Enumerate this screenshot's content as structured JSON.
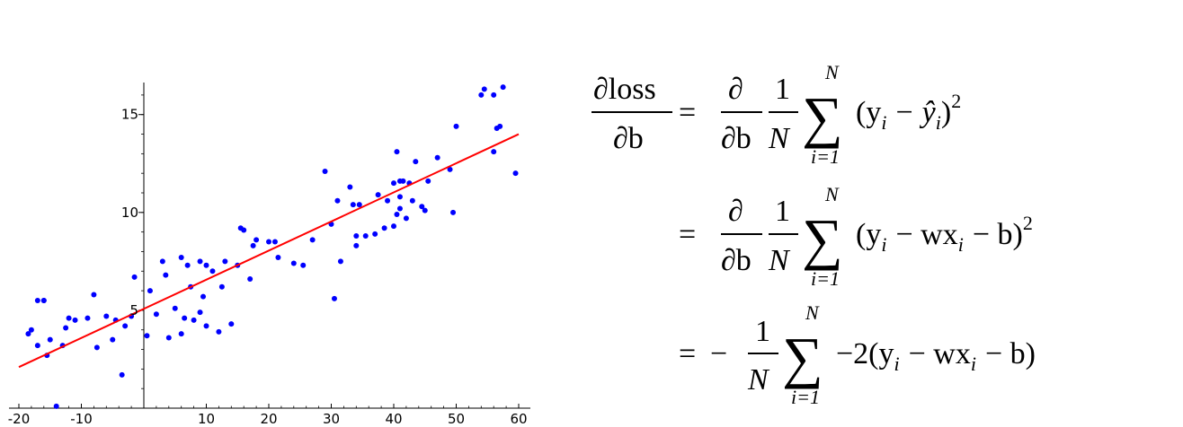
{
  "chart_data": {
    "type": "scatter",
    "title": "",
    "xlabel": "",
    "ylabel": "",
    "xlim": [
      -20,
      60
    ],
    "ylim": [
      0,
      16.5
    ],
    "x_ticks": [
      "-20",
      "-10",
      "10",
      "20",
      "30",
      "40",
      "50",
      "60"
    ],
    "y_ticks": [
      "5",
      "10",
      "15"
    ],
    "grid": false,
    "series": [
      {
        "kind": "scatter",
        "color": "#0000ff",
        "points": [
          [
            -18.5,
            3.8
          ],
          [
            -18,
            4.0
          ],
          [
            -17,
            5.5
          ],
          [
            -16,
            5.5
          ],
          [
            -17,
            3.2
          ],
          [
            -15.5,
            2.7
          ],
          [
            -15,
            3.5
          ],
          [
            -14,
            0.1
          ],
          [
            -13,
            3.2
          ],
          [
            -12.5,
            4.1
          ],
          [
            -12,
            4.6
          ],
          [
            -11,
            4.5
          ],
          [
            -9,
            4.6
          ],
          [
            -8,
            5.8
          ],
          [
            -7.5,
            3.1
          ],
          [
            -6,
            4.7
          ],
          [
            -5,
            3.5
          ],
          [
            -4.5,
            4.5
          ],
          [
            -3.5,
            1.7
          ],
          [
            -3,
            4.2
          ],
          [
            -2,
            4.7
          ],
          [
            -1.5,
            6.7
          ],
          [
            0.5,
            3.7
          ],
          [
            1,
            6.0
          ],
          [
            2,
            4.8
          ],
          [
            3,
            7.5
          ],
          [
            3.5,
            6.8
          ],
          [
            4,
            3.6
          ],
          [
            5,
            5.1
          ],
          [
            6,
            3.8
          ],
          [
            6,
            7.7
          ],
          [
            6.5,
            4.6
          ],
          [
            7,
            7.3
          ],
          [
            7.5,
            6.2
          ],
          [
            8,
            4.5
          ],
          [
            9,
            7.5
          ],
          [
            9,
            4.9
          ],
          [
            9.5,
            5.7
          ],
          [
            10,
            7.3
          ],
          [
            10,
            4.2
          ],
          [
            11,
            7.0
          ],
          [
            12,
            3.9
          ],
          [
            12.5,
            6.2
          ],
          [
            13,
            7.5
          ],
          [
            14,
            4.3
          ],
          [
            15,
            7.3
          ],
          [
            15.5,
            9.2
          ],
          [
            16,
            9.1
          ],
          [
            17,
            6.6
          ],
          [
            17.5,
            8.3
          ],
          [
            18,
            8.6
          ],
          [
            20,
            8.5
          ],
          [
            21,
            8.5
          ],
          [
            21.5,
            7.7
          ],
          [
            24,
            7.4
          ],
          [
            25.5,
            7.3
          ],
          [
            27,
            8.6
          ],
          [
            29,
            12.1
          ],
          [
            30,
            9.4
          ],
          [
            30.5,
            5.6
          ],
          [
            31,
            10.6
          ],
          [
            31.5,
            7.5
          ],
          [
            33,
            11.3
          ],
          [
            33.5,
            10.4
          ],
          [
            34,
            8.3
          ],
          [
            34,
            8.8
          ],
          [
            34.5,
            10.4
          ],
          [
            35.5,
            8.8
          ],
          [
            37,
            8.9
          ],
          [
            37.5,
            10.9
          ],
          [
            38.5,
            9.2
          ],
          [
            39,
            10.6
          ],
          [
            40,
            11.5
          ],
          [
            40,
            9.3
          ],
          [
            40.5,
            13.1
          ],
          [
            40.5,
            9.9
          ],
          [
            41,
            10.2
          ],
          [
            41,
            11.6
          ],
          [
            41.5,
            11.6
          ],
          [
            41,
            10.8
          ],
          [
            42,
            9.7
          ],
          [
            42.5,
            11.5
          ],
          [
            43,
            10.6
          ],
          [
            43.5,
            12.6
          ],
          [
            44.5,
            10.3
          ],
          [
            45,
            10.1
          ],
          [
            45.5,
            11.6
          ],
          [
            47,
            12.8
          ],
          [
            49,
            12.2
          ],
          [
            49.5,
            10.0
          ],
          [
            50,
            14.4
          ],
          [
            54,
            16.0
          ],
          [
            54.5,
            16.3
          ],
          [
            56,
            16.0
          ],
          [
            56,
            13.1
          ],
          [
            56.5,
            14.3
          ],
          [
            57,
            14.4
          ],
          [
            57.5,
            16.4
          ],
          [
            59.5,
            12.0
          ],
          [
            -16,
            5.5
          ]
        ]
      },
      {
        "kind": "line",
        "color": "#ff0000",
        "points": [
          [
            -20,
            2.1
          ],
          [
            60,
            14.0
          ]
        ]
      }
    ]
  },
  "equations": {
    "lhs_numerator": "∂loss",
    "lhs_denominator": "∂b",
    "partial_symbol": "∂",
    "partial_b": "∂b",
    "one": "1",
    "n_upper": "N",
    "sum_symbol": "∑",
    "sum_lower": "i=1",
    "eq_sign": "=",
    "line1_body": "(y",
    "line1_sub_i": "i",
    "line1_minus": "−",
    "line1_yhat": "ŷ",
    "line1_close": ")",
    "line1_power": "2",
    "line2_body": "(y",
    "line2_rest": "− wx",
    "line2_rest2": "− b)",
    "line2_power": "2",
    "line3_prefix": "−",
    "line3_body": "−2(y",
    "line3_rest": "− wx",
    "line3_rest2": "− b)"
  }
}
